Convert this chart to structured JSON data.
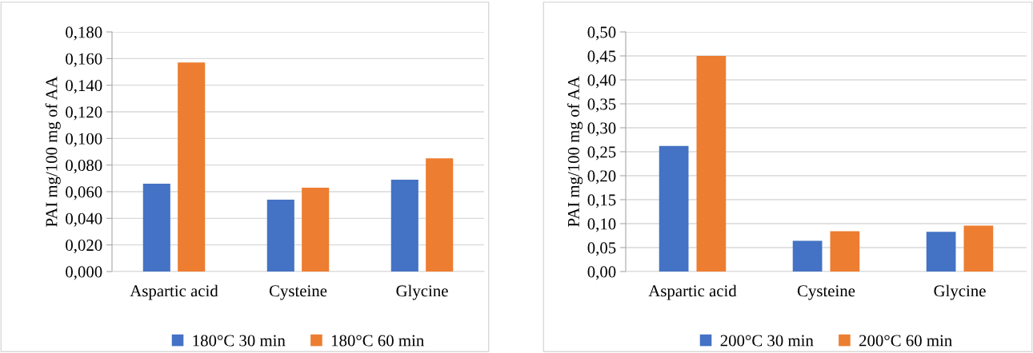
{
  "chart_data": [
    {
      "type": "bar",
      "categories": [
        "Aspartic acid",
        "Cysteine",
        "Glycine"
      ],
      "ylabel": "PAI mg/100 mg of AA",
      "series": [
        {
          "name": "180°C 30 min",
          "color": "#4472c4",
          "values": [
            0.066,
            0.054,
            0.069
          ]
        },
        {
          "name": "180°C 60 min",
          "color": "#ed7d31",
          "values": [
            0.157,
            0.063,
            0.085
          ]
        }
      ],
      "ylim": [
        0,
        0.18
      ],
      "yticks": [
        {
          "value": 0,
          "label": "0,000"
        },
        {
          "value": 0.02,
          "label": "0,020"
        },
        {
          "value": 0.04,
          "label": "0,040"
        },
        {
          "value": 0.06,
          "label": "0,060"
        },
        {
          "value": 0.08,
          "label": "0,080"
        },
        {
          "value": 0.1,
          "label": "0,100"
        },
        {
          "value": 0.12,
          "label": "0,120"
        },
        {
          "value": 0.14,
          "label": "0,140"
        },
        {
          "value": 0.16,
          "label": "0,160"
        },
        {
          "value": 0.18,
          "label": "0,180"
        }
      ],
      "grid": "y",
      "legend": "bottom"
    },
    {
      "type": "bar",
      "categories": [
        "Aspartic acid",
        "Cysteine",
        "Glycine"
      ],
      "ylabel": "PAI mg/100 mg of AA",
      "series": [
        {
          "name": "200°C 30 min",
          "color": "#4472c4",
          "values": [
            0.262,
            0.064,
            0.083
          ]
        },
        {
          "name": "200°C 60 min",
          "color": "#ed7d31",
          "values": [
            0.45,
            0.084,
            0.096
          ]
        }
      ],
      "ylim": [
        0,
        0.5
      ],
      "yticks": [
        {
          "value": 0,
          "label": "0,00"
        },
        {
          "value": 0.05,
          "label": "0,05"
        },
        {
          "value": 0.1,
          "label": "0,10"
        },
        {
          "value": 0.15,
          "label": "0,15"
        },
        {
          "value": 0.2,
          "label": "0,20"
        },
        {
          "value": 0.25,
          "label": "0,25"
        },
        {
          "value": 0.3,
          "label": "0,30"
        },
        {
          "value": 0.35,
          "label": "0,35"
        },
        {
          "value": 0.4,
          "label": "0,40"
        },
        {
          "value": 0.45,
          "label": "0,45"
        },
        {
          "value": 0.5,
          "label": "0,50"
        }
      ],
      "grid": "y",
      "legend": "bottom"
    }
  ]
}
